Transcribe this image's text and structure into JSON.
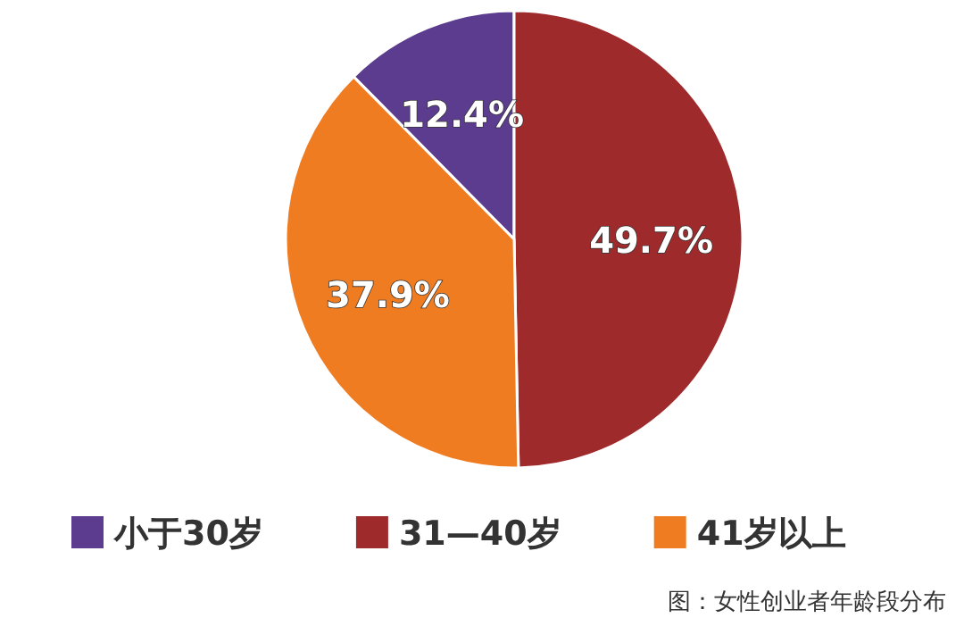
{
  "chart_data": {
    "type": "pie",
    "categories": [
      "小于30岁",
      "31—40岁",
      "41岁以上"
    ],
    "values": [
      12.4,
      49.7,
      37.9
    ],
    "colors": [
      "#5c3c8e",
      "#9f2a2c",
      "#f07c22"
    ],
    "value_labels": [
      "12.4%",
      "49.7%",
      "37.9%"
    ],
    "legend": "bottom",
    "annotations": [
      "图：女性创业者年龄段分布"
    ]
  }
}
